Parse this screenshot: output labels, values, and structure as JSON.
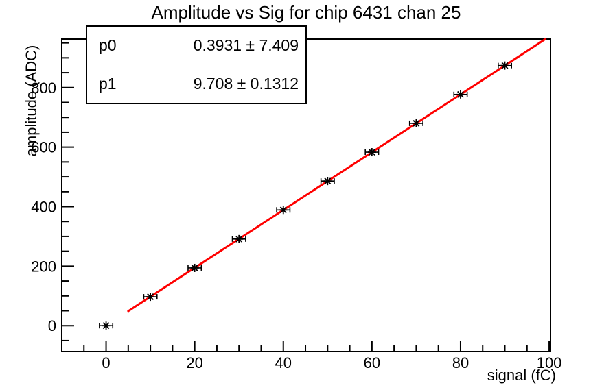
{
  "title": "Amplitude vs Sig for chip 6431 chan 25",
  "stats_box": {
    "rows": [
      {
        "name": "p0",
        "value": "0.3931 ± 7.409"
      },
      {
        "name": "p1",
        "value": "9.708 ± 0.1312"
      }
    ]
  },
  "chart_data": {
    "type": "scatter",
    "title": "Amplitude vs Sig for chip 6431 chan 25",
    "xlabel": "signal (fC)",
    "ylabel": "amplitude (ADC)",
    "xlim": [
      -10,
      100.3
    ],
    "ylim": [
      -87,
      963
    ],
    "x_major_ticks": [
      0,
      20,
      40,
      60,
      80,
      100
    ],
    "x_minor_step": 5,
    "y_major_ticks": [
      0,
      200,
      400,
      600,
      800
    ],
    "y_minor_step": 50,
    "grid": false,
    "legend": false,
    "points": {
      "x": [
        0,
        10,
        20,
        30,
        40,
        50,
        60,
        70,
        80,
        90
      ],
      "y": [
        0,
        97,
        194,
        291,
        389,
        486,
        583,
        680,
        777,
        874
      ],
      "xerr": 1.5,
      "marker": "star",
      "color": "#000000"
    },
    "fit": {
      "p0": 0.3931,
      "p0_err": 7.409,
      "p1": 9.708,
      "p1_err": 0.1312,
      "range": [
        5,
        100
      ],
      "color": "#ff0000"
    }
  },
  "colors": {
    "background": "#ffffff",
    "frame": "#000000",
    "marker": "#000000",
    "fit_line": "#ff0000"
  }
}
